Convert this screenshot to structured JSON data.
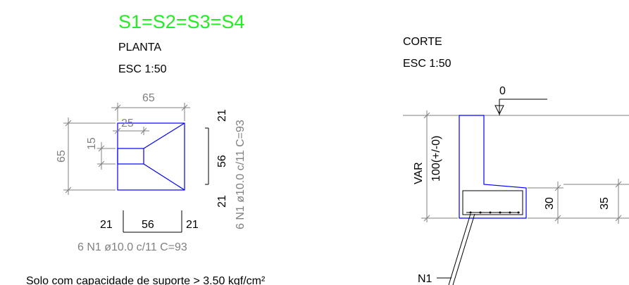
{
  "title": "S1=S2=S3=S4",
  "plan": {
    "label": "PLANTA",
    "scale": "ESC 1:50",
    "dim_top_width": "65",
    "dim_top_inner": "25",
    "dim_left_height": "65",
    "dim_left_inner": "15",
    "dim_right_a": "21",
    "dim_right_b": "56",
    "dim_right_c": "21",
    "dim_bottom_a": "21",
    "dim_bottom_b": "56",
    "dim_bottom_c": "21",
    "rebar_bottom": "6 N1 ø10.0 c/11 C=93",
    "rebar_side": "6 N1 ø10.0 c/11 C=93"
  },
  "section": {
    "label": "CORTE",
    "scale": "ESC 1:50",
    "level_label": "0",
    "var_label": "VAR",
    "var_value": "100(+/-0)",
    "dim_30": "30",
    "dim_35": "35",
    "bar_label": "N1"
  },
  "note": "Solo com capacidade de suporte > 3.50 kgf/cm²",
  "colors": {
    "title": "#22ee22",
    "concrete": "#0000ff",
    "dimension": "#808080",
    "text": "#000000"
  }
}
